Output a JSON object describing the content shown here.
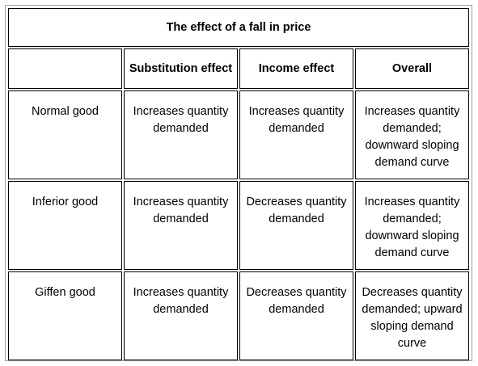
{
  "table": {
    "title": "The effect of a fall in price",
    "headers": [
      "",
      "Substitution effect",
      "Income effect",
      "Overall"
    ],
    "rows": [
      {
        "good": "Normal good",
        "substitution": "Increases quantity demanded",
        "income": "Increases quantity demanded",
        "overall": "Increases quantity demanded; downward sloping demand curve"
      },
      {
        "good": "Inferior good",
        "substitution": "Increases quantity demanded",
        "income": "Decreases quantity demanded",
        "overall": "Increases quantity demanded; downward sloping demand curve"
      },
      {
        "good": "Giffen good",
        "substitution": "Increases quantity demanded",
        "income": "Decreases quantity demanded",
        "overall": "Decreases quantity demanded; upward sloping demand curve"
      }
    ]
  }
}
